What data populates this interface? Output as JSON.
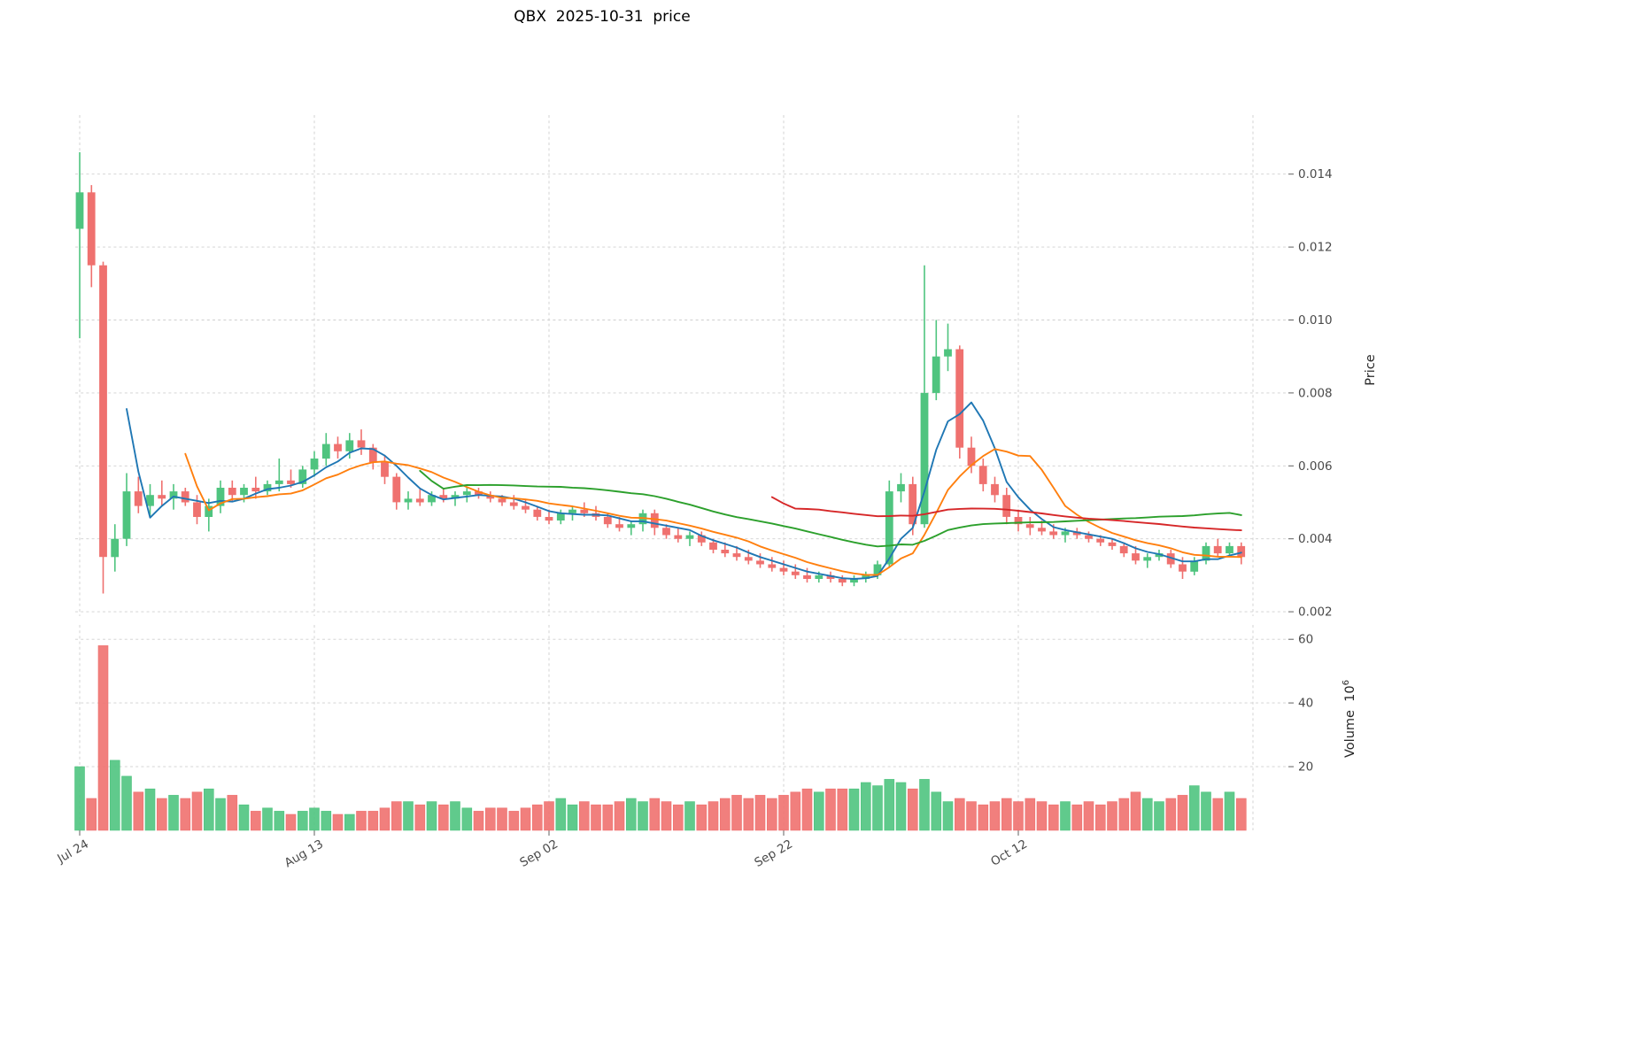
{
  "title": "QBX  2025-10-31  price",
  "chart_data": {
    "type": "candlestick",
    "title": "QBX  2025-10-31  price",
    "ylabel": "Price",
    "ylabel_volume_main": "Volume  10",
    "ylabel_volume_exp": "6",
    "grid": true,
    "legend": "none",
    "x_tick_rotation": 30,
    "x_ticks": [
      {
        "day": 0,
        "label": "Jul 24"
      },
      {
        "day": 20,
        "label": "Aug 13"
      },
      {
        "day": 40,
        "label": "Sep 02"
      },
      {
        "day": 60,
        "label": "Sep 22"
      },
      {
        "day": 80,
        "label": "Oct 12"
      },
      {
        "day": 100,
        "label": ""
      }
    ],
    "price_ticks": [
      0.002,
      0.004,
      0.006,
      0.008,
      0.01,
      0.012,
      0.014
    ],
    "volume_ticks": [
      20,
      40,
      60
    ],
    "price_ylim": [
      0.00188,
      0.01562
    ],
    "volume_ylim": [
      0,
      64.5
    ],
    "up_color": "#4fc47f",
    "down_color": "#ef716f",
    "ma_windows": [
      5,
      10,
      30,
      60
    ],
    "ma_colors": [
      "#1f77b4",
      "#ff7f0e",
      "#2ca02c",
      "#d62728"
    ],
    "ohlc": [
      [
        0.0125,
        0.0146,
        0.0095,
        0.0135
      ],
      [
        0.0135,
        0.0137,
        0.0109,
        0.0115
      ],
      [
        0.0115,
        0.0116,
        0.0025,
        0.0035
      ],
      [
        0.0035,
        0.0044,
        0.0031,
        0.004
      ],
      [
        0.004,
        0.0058,
        0.0038,
        0.0053
      ],
      [
        0.0053,
        0.0057,
        0.0047,
        0.0049
      ],
      [
        0.0049,
        0.0055,
        0.0046,
        0.0052
      ],
      [
        0.0052,
        0.0056,
        0.0049,
        0.0051
      ],
      [
        0.0051,
        0.0055,
        0.0048,
        0.0053
      ],
      [
        0.0053,
        0.0054,
        0.0049,
        0.005
      ],
      [
        0.005,
        0.0052,
        0.0044,
        0.0046
      ],
      [
        0.0046,
        0.0051,
        0.0042,
        0.0049
      ],
      [
        0.0049,
        0.0056,
        0.0047,
        0.0054
      ],
      [
        0.0054,
        0.0056,
        0.005,
        0.0052
      ],
      [
        0.0052,
        0.0055,
        0.005,
        0.0054
      ],
      [
        0.0054,
        0.0057,
        0.0051,
        0.0053
      ],
      [
        0.0053,
        0.0056,
        0.0052,
        0.0055
      ],
      [
        0.0055,
        0.0062,
        0.0053,
        0.0056
      ],
      [
        0.0056,
        0.0059,
        0.0054,
        0.0055
      ],
      [
        0.0055,
        0.006,
        0.0054,
        0.0059
      ],
      [
        0.0059,
        0.0064,
        0.0057,
        0.0062
      ],
      [
        0.0062,
        0.0069,
        0.006,
        0.0066
      ],
      [
        0.0066,
        0.0068,
        0.0062,
        0.0064
      ],
      [
        0.0064,
        0.0069,
        0.0062,
        0.0067
      ],
      [
        0.0067,
        0.007,
        0.0063,
        0.0065
      ],
      [
        0.0065,
        0.0066,
        0.0059,
        0.0061
      ],
      [
        0.0061,
        0.0063,
        0.0055,
        0.0057
      ],
      [
        0.0057,
        0.0058,
        0.0048,
        0.005
      ],
      [
        0.005,
        0.0053,
        0.0048,
        0.0051
      ],
      [
        0.0051,
        0.0054,
        0.0049,
        0.005
      ],
      [
        0.005,
        0.0053,
        0.0049,
        0.0052
      ],
      [
        0.0052,
        0.0054,
        0.005,
        0.0051
      ],
      [
        0.0051,
        0.0053,
        0.0049,
        0.0052
      ],
      [
        0.0052,
        0.0054,
        0.005,
        0.0053
      ],
      [
        0.0053,
        0.0054,
        0.0051,
        0.0052
      ],
      [
        0.0052,
        0.0053,
        0.005,
        0.0051
      ],
      [
        0.0051,
        0.0052,
        0.0049,
        0.005
      ],
      [
        0.005,
        0.0052,
        0.0048,
        0.0049
      ],
      [
        0.0049,
        0.0051,
        0.0047,
        0.0048
      ],
      [
        0.0048,
        0.0049,
        0.0045,
        0.0046
      ],
      [
        0.0046,
        0.0048,
        0.0044,
        0.0045
      ],
      [
        0.0045,
        0.0048,
        0.0044,
        0.0047
      ],
      [
        0.0047,
        0.0049,
        0.0045,
        0.0048
      ],
      [
        0.0048,
        0.005,
        0.0046,
        0.0047
      ],
      [
        0.0047,
        0.0049,
        0.0045,
        0.0046
      ],
      [
        0.0046,
        0.0047,
        0.0043,
        0.0044
      ],
      [
        0.0044,
        0.0046,
        0.0042,
        0.0043
      ],
      [
        0.0043,
        0.0045,
        0.0041,
        0.0044
      ],
      [
        0.0044,
        0.0048,
        0.0042,
        0.0047
      ],
      [
        0.0047,
        0.0048,
        0.0041,
        0.0043
      ],
      [
        0.0043,
        0.0044,
        0.004,
        0.0041
      ],
      [
        0.0041,
        0.0043,
        0.0039,
        0.004
      ],
      [
        0.004,
        0.0042,
        0.0038,
        0.0041
      ],
      [
        0.0041,
        0.0042,
        0.0038,
        0.0039
      ],
      [
        0.0039,
        0.004,
        0.0036,
        0.0037
      ],
      [
        0.0037,
        0.0039,
        0.0035,
        0.0036
      ],
      [
        0.0036,
        0.0038,
        0.0034,
        0.0035
      ],
      [
        0.0035,
        0.0037,
        0.0033,
        0.0034
      ],
      [
        0.0034,
        0.0036,
        0.0032,
        0.0033
      ],
      [
        0.0033,
        0.0035,
        0.0031,
        0.0032
      ],
      [
        0.0032,
        0.0034,
        0.003,
        0.0031
      ],
      [
        0.0031,
        0.0033,
        0.0029,
        0.003
      ],
      [
        0.003,
        0.0032,
        0.0028,
        0.0029
      ],
      [
        0.0029,
        0.0031,
        0.0028,
        0.003
      ],
      [
        0.003,
        0.0031,
        0.0028,
        0.0029
      ],
      [
        0.0029,
        0.003,
        0.0027,
        0.0028
      ],
      [
        0.0028,
        0.003,
        0.0027,
        0.0029
      ],
      [
        0.0029,
        0.0031,
        0.0028,
        0.003
      ],
      [
        0.003,
        0.0034,
        0.0029,
        0.0033
      ],
      [
        0.0033,
        0.0056,
        0.0032,
        0.0053
      ],
      [
        0.0053,
        0.0058,
        0.005,
        0.0055
      ],
      [
        0.0055,
        0.0057,
        0.0041,
        0.0044
      ],
      [
        0.0044,
        0.0115,
        0.0043,
        0.008
      ],
      [
        0.008,
        0.01,
        0.0078,
        0.009
      ],
      [
        0.009,
        0.0099,
        0.0086,
        0.0092
      ],
      [
        0.0092,
        0.0093,
        0.0062,
        0.0065
      ],
      [
        0.0065,
        0.0068,
        0.0058,
        0.006
      ],
      [
        0.006,
        0.0062,
        0.0053,
        0.0055
      ],
      [
        0.0055,
        0.0057,
        0.005,
        0.0052
      ],
      [
        0.0052,
        0.0054,
        0.0044,
        0.0046
      ],
      [
        0.0046,
        0.0048,
        0.0042,
        0.0044
      ],
      [
        0.0044,
        0.0046,
        0.0041,
        0.0043
      ],
      [
        0.0043,
        0.0045,
        0.0041,
        0.0042
      ],
      [
        0.0042,
        0.0044,
        0.004,
        0.0041
      ],
      [
        0.0041,
        0.0043,
        0.0039,
        0.0042
      ],
      [
        0.0042,
        0.0043,
        0.004,
        0.0041
      ],
      [
        0.0041,
        0.0042,
        0.0039,
        0.004
      ],
      [
        0.004,
        0.0041,
        0.0038,
        0.0039
      ],
      [
        0.0039,
        0.004,
        0.0037,
        0.0038
      ],
      [
        0.0038,
        0.0039,
        0.0035,
        0.0036
      ],
      [
        0.0036,
        0.0038,
        0.0033,
        0.0034
      ],
      [
        0.0034,
        0.0036,
        0.0032,
        0.0035
      ],
      [
        0.0035,
        0.0037,
        0.0034,
        0.0036
      ],
      [
        0.0036,
        0.0037,
        0.0032,
        0.0033
      ],
      [
        0.0033,
        0.0035,
        0.0029,
        0.0031
      ],
      [
        0.0031,
        0.0035,
        0.003,
        0.0034
      ],
      [
        0.0034,
        0.0039,
        0.0033,
        0.0038
      ],
      [
        0.0038,
        0.004,
        0.0035,
        0.0036
      ],
      [
        0.0036,
        0.0039,
        0.0035,
        0.0038
      ],
      [
        0.0038,
        0.0039,
        0.0033,
        0.0035
      ]
    ],
    "volume": [
      20,
      10,
      58,
      22,
      17,
      12,
      13,
      10,
      11,
      10,
      12,
      13,
      10,
      11,
      8,
      6,
      7,
      6,
      5,
      6,
      7,
      6,
      5,
      5,
      6,
      6,
      7,
      9,
      9,
      8,
      9,
      8,
      9,
      7,
      6,
      7,
      7,
      6,
      7,
      8,
      9,
      10,
      8,
      9,
      8,
      8,
      9,
      10,
      9,
      10,
      9,
      8,
      9,
      8,
      9,
      10,
      11,
      10,
      11,
      10,
      11,
      12,
      13,
      12,
      13,
      13,
      13,
      15,
      14,
      16,
      15,
      13,
      16,
      12,
      9,
      10,
      9,
      8,
      9,
      10,
      9,
      10,
      9,
      8,
      9,
      8,
      9,
      8,
      9,
      10,
      12,
      10,
      9,
      10,
      11,
      14,
      12,
      10,
      12,
      10
    ]
  }
}
